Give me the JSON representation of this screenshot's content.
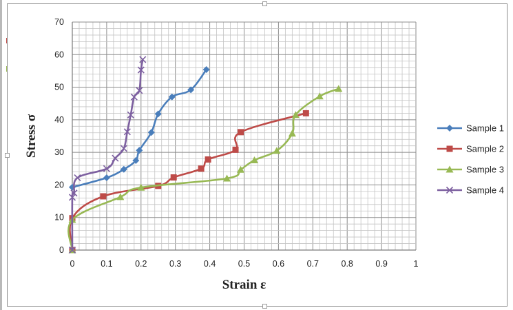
{
  "chart_data": {
    "type": "line",
    "xlabel": "Strain ε",
    "ylabel": "Stress σ",
    "xlim": [
      0,
      1
    ],
    "ylim": [
      0,
      70
    ],
    "x_ticks": [
      "0",
      "0.1",
      "0.2",
      "0.3",
      "0.4",
      "0.5",
      "0.6",
      "0.7",
      "0.8",
      "0.9",
      "1"
    ],
    "y_ticks": [
      "0",
      "10",
      "20",
      "30",
      "40",
      "50",
      "60",
      "70"
    ],
    "grid": true,
    "legend_position": "right",
    "series": [
      {
        "name": "Sample 1",
        "color": "#4a7ebb",
        "marker": "diamond",
        "points": [
          [
            0,
            19.3
          ],
          [
            0.1,
            22.2
          ],
          [
            0.15,
            24.8
          ],
          [
            0.185,
            27.5
          ],
          [
            0.195,
            30.6
          ],
          [
            0.23,
            36.1
          ],
          [
            0.25,
            41.8
          ],
          [
            0.29,
            47.0
          ],
          [
            0.345,
            49.2
          ],
          [
            0.39,
            55.4
          ]
        ]
      },
      {
        "name": "Sample 2",
        "color": "#be4b48",
        "marker": "square",
        "points": [
          [
            0,
            0
          ],
          [
            0,
            9.8
          ],
          [
            0.09,
            16.5
          ],
          [
            0.25,
            19.7
          ],
          [
            0.295,
            22.3
          ],
          [
            0.375,
            25.0
          ],
          [
            0.395,
            27.8
          ],
          [
            0.475,
            30.8
          ],
          [
            0.49,
            36.2
          ],
          [
            0.68,
            42.0
          ]
        ]
      },
      {
        "name": "Sample 3",
        "color": "#98b954",
        "marker": "triangle",
        "points": [
          [
            0,
            0
          ],
          [
            0,
            9.3
          ],
          [
            0.14,
            16.3
          ],
          [
            0.2,
            19.2
          ],
          [
            0.45,
            22.0
          ],
          [
            0.49,
            24.7
          ],
          [
            0.53,
            27.6
          ],
          [
            0.595,
            30.5
          ],
          [
            0.64,
            35.8
          ],
          [
            0.65,
            41.5
          ],
          [
            0.72,
            47.2
          ],
          [
            0.775,
            49.5
          ]
        ]
      },
      {
        "name": "Sample 4",
        "color": "#7d60a0",
        "marker": "x",
        "points": [
          [
            0,
            0
          ],
          [
            0,
            16.2
          ],
          [
            0.005,
            17.5
          ],
          [
            0.015,
            22.2
          ],
          [
            0.1,
            25.0
          ],
          [
            0.125,
            28.2
          ],
          [
            0.15,
            31.2
          ],
          [
            0.16,
            36.3
          ],
          [
            0.17,
            41.5
          ],
          [
            0.18,
            47.0
          ],
          [
            0.195,
            49.0
          ],
          [
            0.2,
            55.3
          ],
          [
            0.205,
            58.5
          ]
        ]
      }
    ]
  }
}
